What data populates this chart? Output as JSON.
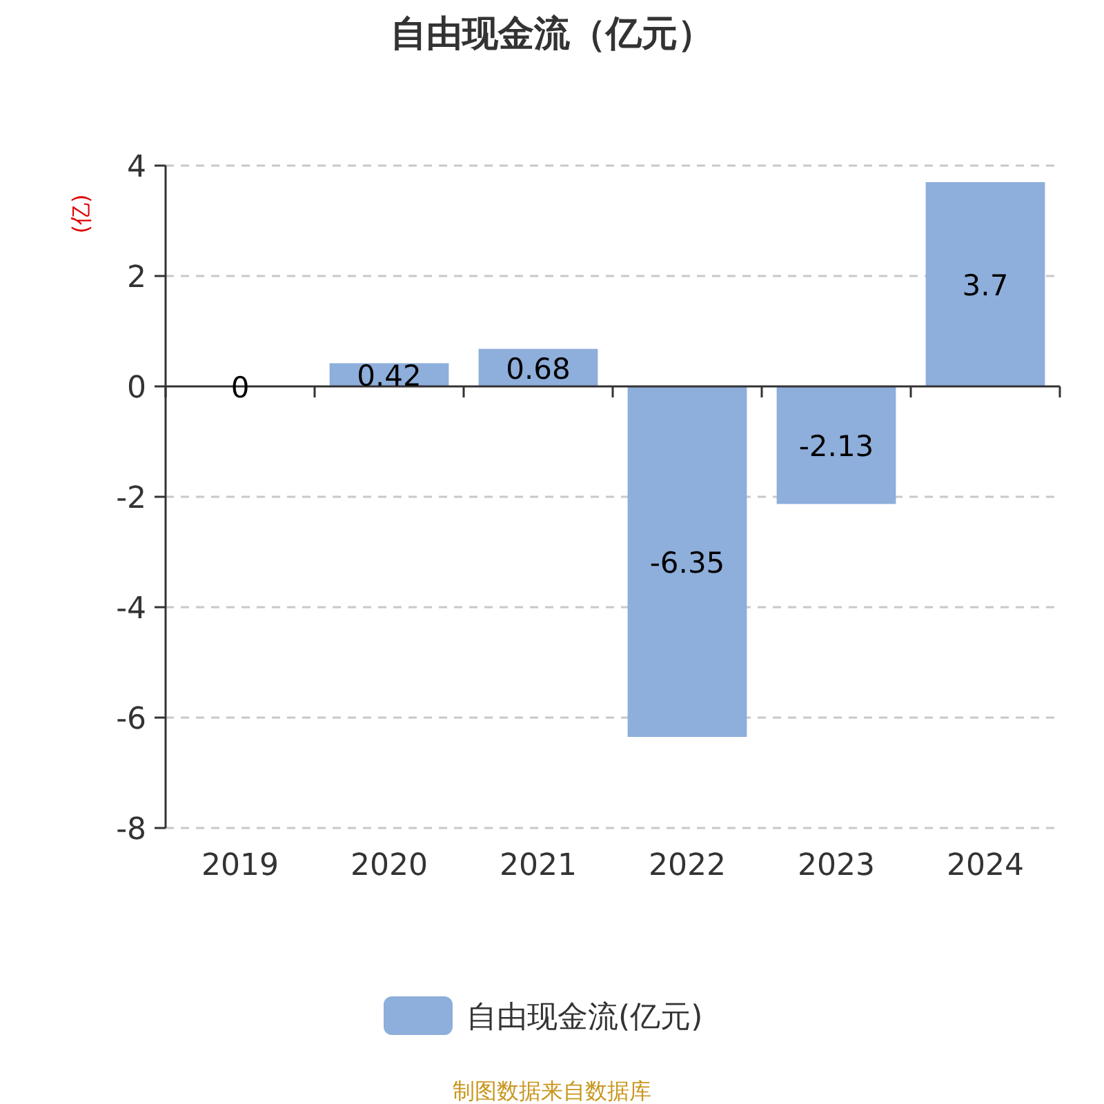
{
  "chart_data": {
    "type": "bar",
    "title": "自由现金流（亿元）",
    "ylabel": "(亿)",
    "categories": [
      "2019",
      "2020",
      "2021",
      "2022",
      "2023",
      "2024"
    ],
    "series": [
      {
        "name": "自由现金流(亿元)",
        "color": "#8eaedb",
        "values": [
          0,
          0.42,
          0.68,
          -6.35,
          -2.13,
          3.7
        ]
      }
    ],
    "ylim": [
      -8,
      4
    ],
    "yticks": [
      -8,
      -6,
      -4,
      -2,
      0,
      2,
      4
    ],
    "grid": "y",
    "legend": "bottom",
    "data_labels": true,
    "annotations": [
      "制图数据来自数据库"
    ]
  }
}
